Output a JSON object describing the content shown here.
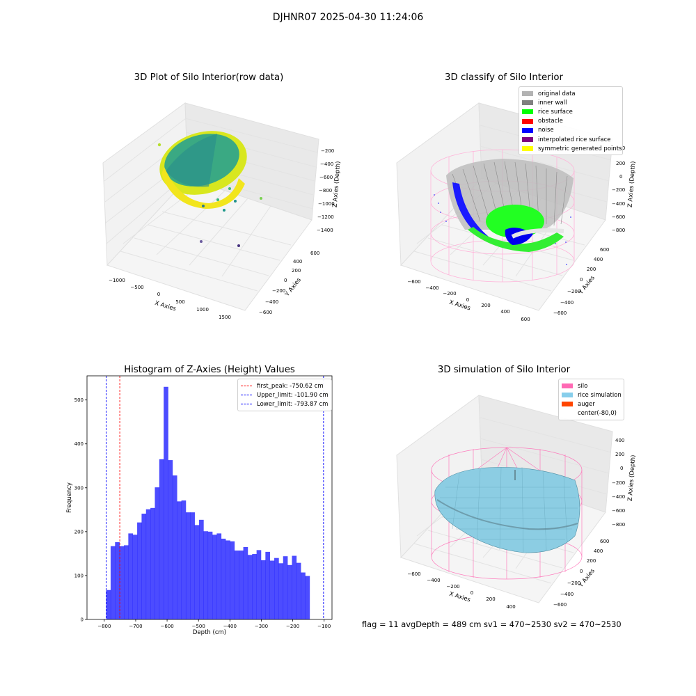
{
  "figure": {
    "suptitle": "DJHNR07 2025-04-30 11:24:06",
    "footer": "flag = 11  avgDepth = 489 cm  sv1 = 470~2530  sv2 = 470~2530"
  },
  "panels": {
    "raw": {
      "title": "3D Plot of Silo Interior(row data)",
      "xlabel": "X Axies",
      "ylabel": "Y Axies",
      "zlabel": "Z Axies (Depth)",
      "xticks": [
        "−1000",
        "−500",
        "0",
        "500",
        "1000",
        "1500"
      ],
      "yticks": [
        "−600",
        "−400",
        "−200",
        "0",
        "200",
        "400",
        "600"
      ],
      "zticks": [
        "−200",
        "−400",
        "−600",
        "−800",
        "−1000",
        "−1200",
        "−1400"
      ]
    },
    "classify": {
      "title": "3D classify of Silo Interior",
      "xlabel": "X Axies",
      "ylabel": "Y Axies",
      "zlabel": "Z Axies (Depth)",
      "xticks": [
        "−600",
        "−400",
        "−200",
        "0",
        "200",
        "400",
        "600"
      ],
      "yticks": [
        "−600",
        "−400",
        "−200",
        "0",
        "200",
        "400",
        "600"
      ],
      "zticks": [
        "400",
        "200",
        "0",
        "−200",
        "−400",
        "−600",
        "−800"
      ],
      "legend": [
        {
          "label": "original data",
          "color": "#b3b3b3"
        },
        {
          "label": "inner wall",
          "color": "#808080"
        },
        {
          "label": "rice surface",
          "color": "#00ff00"
        },
        {
          "label": "obstacle",
          "color": "#ff0000"
        },
        {
          "label": "noise",
          "color": "#0000ff"
        },
        {
          "label": "interpolated rice surface",
          "color": "#800080"
        },
        {
          "label": "symmetric generated points",
          "color": "#ffff00"
        }
      ]
    },
    "simulation": {
      "title": "3D simulation of Silo Interior",
      "xlabel": "X Axies",
      "ylabel": "Y Axies",
      "zlabel": "Z Axies (Depth)",
      "xticks": [
        "−600",
        "−400",
        "−200",
        "0",
        "200",
        "400"
      ],
      "yticks": [
        "−600",
        "−400",
        "−200",
        "0",
        "200",
        "400",
        "600"
      ],
      "zticks": [
        "400",
        "200",
        "0",
        "−200",
        "−400",
        "−600",
        "−800"
      ],
      "legend": [
        {
          "label": "silo",
          "color": "#ff69b4"
        },
        {
          "label": "rice simulation",
          "color": "#87ceeb"
        },
        {
          "label": "auger",
          "color": "#ff4500"
        },
        {
          "label": "center(-80,0)",
          "color": "#ffffff"
        }
      ]
    }
  },
  "chart_data": [
    {
      "type": "bar",
      "title": "Histogram of Z-Axies (Height) Values",
      "xlabel": "Depth (cm)",
      "ylabel": "Frequency",
      "xlim": [
        -855,
        -75
      ],
      "ylim": [
        0,
        555
      ],
      "xticks": [
        -800,
        -700,
        -600,
        -500,
        -400,
        -300,
        -200,
        -100
      ],
      "xtick_labels": [
        "−800",
        "−700",
        "−600",
        "−500",
        "−400",
        "−300",
        "−200",
        "−100"
      ],
      "yticks": [
        0,
        100,
        200,
        300,
        400,
        500
      ],
      "bar_color": "#0000ff",
      "bar_alpha": 0.7,
      "bins": {
        "start": -793.87,
        "width": 14.08,
        "counts": [
          67,
          167,
          176,
          167,
          169,
          196,
          193,
          221,
          241,
          251,
          254,
          301,
          365,
          530,
          363,
          328,
          269,
          271,
          244,
          244,
          215,
          227,
          201,
          200,
          193,
          196,
          184,
          180,
          178,
          157,
          157,
          165,
          147,
          149,
          158,
          135,
          154,
          134,
          140,
          128,
          144,
          124,
          145,
          129,
          107,
          99
        ]
      },
      "vlines": [
        {
          "label": "first_peak: -750.62 cm",
          "x": -750.62,
          "color": "#ff0000"
        },
        {
          "label": "Upper_limit: -101.90 cm",
          "x": -101.9,
          "color": "#0000ff"
        },
        {
          "label": "Lower_limit: -793.87 cm",
          "x": -793.87,
          "color": "#0000ff"
        }
      ],
      "legend_position": "upper right"
    }
  ]
}
